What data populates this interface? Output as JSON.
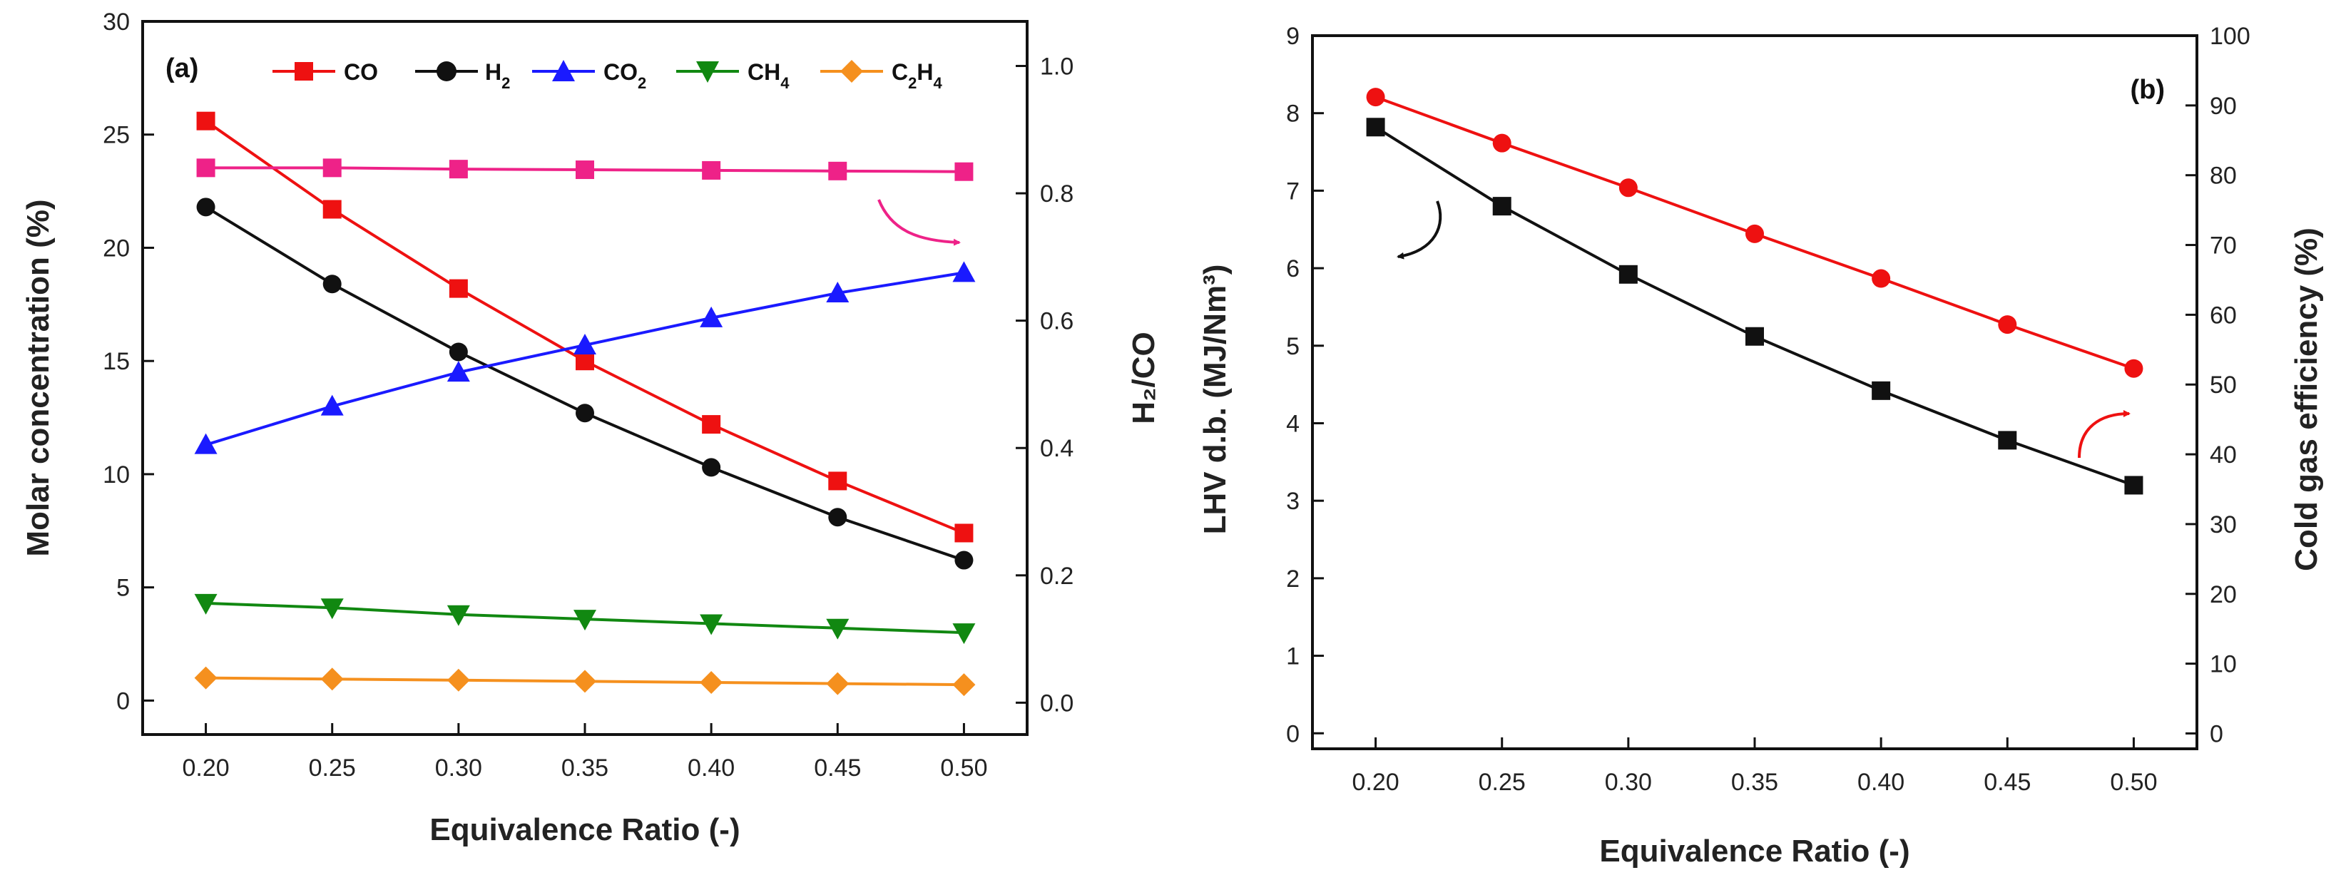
{
  "chart_data": [
    {
      "type": "line",
      "panel_label": "(a)",
      "title": "",
      "xlabel": "Equivalence Ratio (-)",
      "ylabel": "Molar concentration (%)",
      "ylabel_right": "H₂/CO",
      "x": [
        0.2,
        0.25,
        0.3,
        0.35,
        0.4,
        0.45,
        0.5
      ],
      "x_tick_labels": [
        "0.20",
        "0.25",
        "0.30",
        "0.35",
        "0.40",
        "0.45",
        "0.50"
      ],
      "xlim": [
        0.175,
        0.525
      ],
      "ylim": [
        -1.5,
        30
      ],
      "ylim_right": [
        -0.05,
        1.07
      ],
      "y_ticks": [
        0,
        5,
        10,
        15,
        20,
        25,
        30
      ],
      "y_tick_labels": [
        "0",
        "5",
        "10",
        "15",
        "20",
        "25",
        "30"
      ],
      "y_ticks_right": [
        0.0,
        0.2,
        0.4,
        0.6,
        0.8,
        1.0
      ],
      "y_tick_labels_right": [
        "0.0",
        "0.2",
        "0.4",
        "0.6",
        "0.8",
        "1.0"
      ],
      "legend_position": "top",
      "series": [
        {
          "name": "CO",
          "label_main": "CO",
          "label_sub": "",
          "label_tail": "",
          "color": "#ee1111",
          "marker": "square",
          "axis": "left",
          "in_legend": true,
          "values": [
            25.6,
            21.7,
            18.2,
            15.0,
            12.2,
            9.7,
            7.4
          ]
        },
        {
          "name": "H2",
          "label_main": "H",
          "label_sub": "2",
          "label_tail": "",
          "color": "#111111",
          "marker": "circle",
          "axis": "left",
          "in_legend": true,
          "values": [
            21.8,
            18.4,
            15.4,
            12.7,
            10.3,
            8.1,
            6.2
          ]
        },
        {
          "name": "CO2",
          "label_main": "CO",
          "label_sub": "2",
          "label_tail": "",
          "color": "#1a1aff",
          "marker": "triangle-up",
          "axis": "left",
          "in_legend": true,
          "values": [
            11.3,
            13.0,
            14.5,
            15.7,
            16.9,
            18.0,
            18.9
          ]
        },
        {
          "name": "CH4",
          "label_main": "CH",
          "label_sub": "4",
          "label_tail": "",
          "color": "#118811",
          "marker": "triangle-down",
          "axis": "left",
          "in_legend": true,
          "values": [
            4.3,
            4.1,
            3.8,
            3.6,
            3.4,
            3.2,
            3.0
          ]
        },
        {
          "name": "C2H4",
          "label_main": "C",
          "label_sub": "2",
          "label_tail": "H",
          "label_sub2": "4",
          "color": "#f5901e",
          "marker": "diamond",
          "axis": "left",
          "in_legend": true,
          "values": [
            1.0,
            0.95,
            0.9,
            0.85,
            0.8,
            0.75,
            0.7
          ]
        },
        {
          "name": "H2/CO",
          "color": "#ee2288",
          "marker": "square",
          "axis": "right",
          "in_legend": false,
          "values": [
            0.84,
            0.84,
            0.838,
            0.837,
            0.836,
            0.835,
            0.834
          ]
        }
      ],
      "annotations": [
        {
          "type": "arrow",
          "color": "#ee2288",
          "points_to": "right axis"
        }
      ]
    },
    {
      "type": "line",
      "panel_label": "(b)",
      "title": "",
      "xlabel": "Equivalence Ratio (-)",
      "ylabel": "LHV d.b. (MJ/Nm³)",
      "ylabel_right": "Cold gas efficiency (%)",
      "x": [
        0.2,
        0.25,
        0.3,
        0.35,
        0.4,
        0.45,
        0.5
      ],
      "x_tick_labels": [
        "0.20",
        "0.25",
        "0.30",
        "0.35",
        "0.40",
        "0.45",
        "0.50"
      ],
      "xlim": [
        0.175,
        0.525
      ],
      "ylim": [
        -0.2,
        9
      ],
      "ylim_right": [
        -2.2,
        100
      ],
      "y_ticks": [
        0,
        1,
        2,
        3,
        4,
        5,
        6,
        7,
        8,
        9
      ],
      "y_tick_labels": [
        "0",
        "1",
        "2",
        "3",
        "4",
        "5",
        "6",
        "7",
        "8",
        "9"
      ],
      "y_ticks_right": [
        0,
        10,
        20,
        30,
        40,
        50,
        60,
        70,
        80,
        90,
        100
      ],
      "y_tick_labels_right": [
        "0",
        "10",
        "20",
        "30",
        "40",
        "50",
        "60",
        "70",
        "80",
        "90",
        "100"
      ],
      "series": [
        {
          "name": "LHV d.b.",
          "color": "#111111",
          "marker": "square",
          "axis": "left",
          "values": [
            7.82,
            6.8,
            5.92,
            5.12,
            4.42,
            3.78,
            3.2
          ]
        },
        {
          "name": "Cold gas efficiency",
          "color": "#ee1111",
          "marker": "circle",
          "axis": "right",
          "values": [
            91.2,
            84.6,
            78.2,
            71.6,
            65.2,
            58.6,
            52.3
          ]
        }
      ],
      "annotations": [
        {
          "type": "arrow",
          "color": "#111111",
          "points_to": "left axis"
        },
        {
          "type": "arrow",
          "color": "#ee1111",
          "points_to": "right axis"
        }
      ]
    }
  ]
}
